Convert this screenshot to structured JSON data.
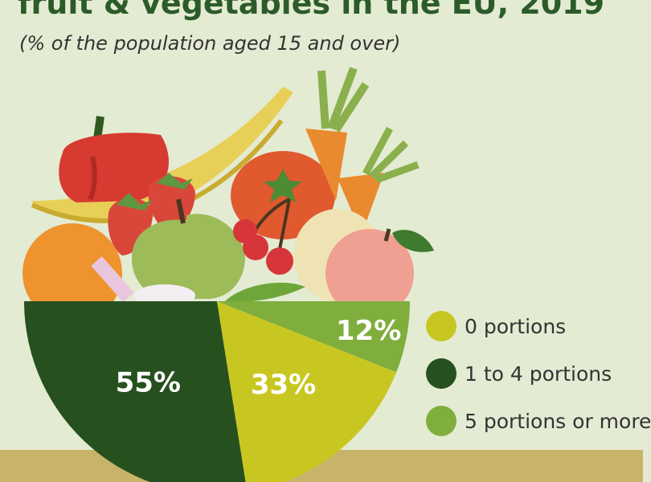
{
  "header": {
    "title": "fruit & vegetables in the EU, 2019",
    "subtitle": "(% of  the population aged 15 and over)"
  },
  "chart_data": {
    "type": "pie",
    "unit": "%",
    "slices": [
      {
        "label": "0 portions",
        "value": 33,
        "color": "#c8c722"
      },
      {
        "label": "1 to 4 portions",
        "value": 55,
        "color": "#27501f"
      },
      {
        "label": "5 portions or more",
        "value": 12,
        "color": "#7fae3d"
      }
    ],
    "legend_placement": "right"
  },
  "illustration": {
    "items": [
      "pepper-icon",
      "banana-icon",
      "tomato-icon",
      "carrot-icon",
      "strawberry-icon",
      "apple-icon",
      "orange-icon",
      "cherry-icon",
      "squash-icon",
      "peach-icon",
      "garlic-icon",
      "pea-pod-icon"
    ]
  }
}
